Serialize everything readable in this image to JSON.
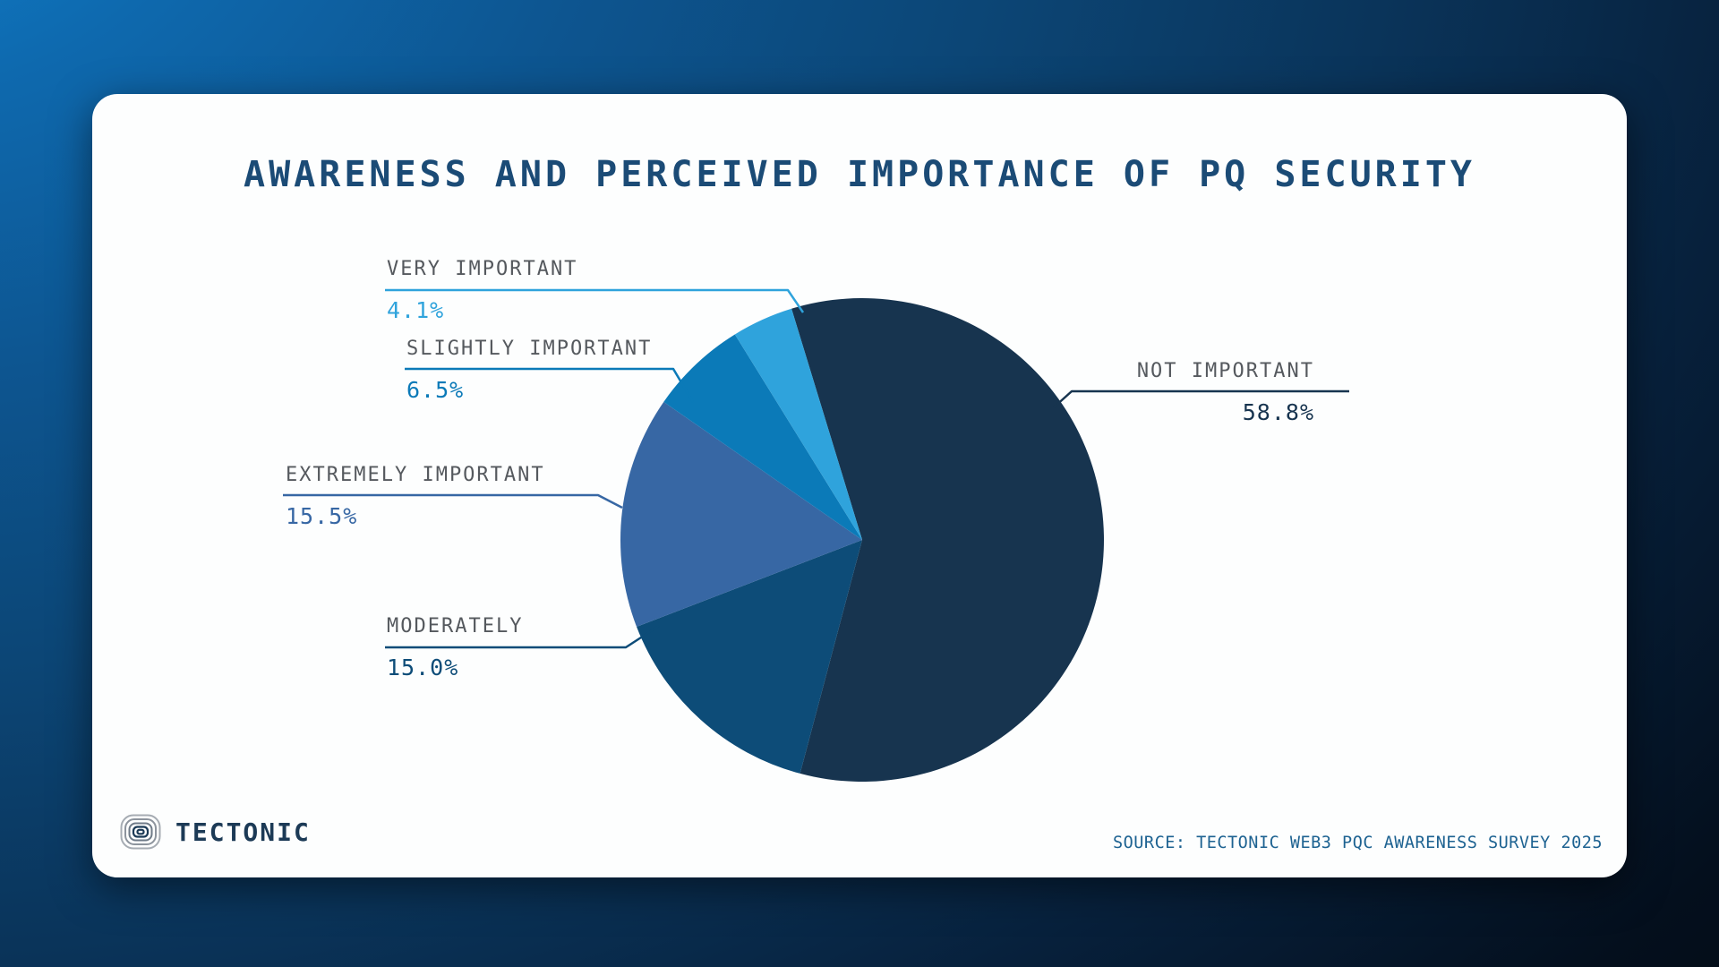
{
  "chart_data": {
    "type": "pie",
    "title": "AWARENESS AND PERCEIVED IMPORTANCE OF PQ SECURITY",
    "start_angle_deg_from_north": -17,
    "direction": "clockwise",
    "legend_position": "callout-labels",
    "slices": [
      {
        "label": "NOT IMPORTANT",
        "value": 58.8,
        "display": "58.8%",
        "color": "#17344f"
      },
      {
        "label": "MODERATELY",
        "value": 15.0,
        "display": "15.0%",
        "color": "#0d4c78"
      },
      {
        "label": "EXTREMELY IMPORTANT",
        "value": 15.5,
        "display": "15.5%",
        "color": "#3767a4"
      },
      {
        "label": "SLIGHTLY IMPORTANT",
        "value": 6.5,
        "display": "6.5%",
        "color": "#0b7ab8"
      },
      {
        "label": "VERY IMPORTANT",
        "value": 4.1,
        "display": "4.1%",
        "color": "#2fa3dc"
      }
    ]
  },
  "brand": {
    "name": "TECTONIC"
  },
  "source": "SOURCE: TECTONIC WEB3 PQC AWARENESS SURVEY 2025",
  "colors": {
    "card_background": "#fdfefe",
    "title_text": "#1b4b76",
    "callout_label_text": "#55595e",
    "source_text": "#1d6291",
    "background_blue": "#0d5590",
    "background_dark": "#02060b"
  }
}
